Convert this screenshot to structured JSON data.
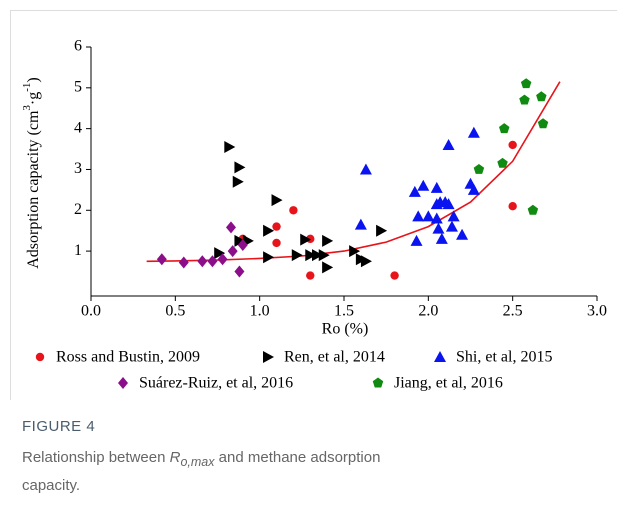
{
  "chart_data": {
    "type": "scatter",
    "xlabel": "Ro (%)",
    "ylabel": {
      "main": "Adsorption capacity (cm",
      "sup1": "3",
      "mid": "·g",
      "sup2": "-1",
      "end": ")"
    },
    "xlim": [
      0,
      3.0
    ],
    "ylim": [
      -0.1,
      6
    ],
    "xticks": [
      {
        "value": 0,
        "label": "0.0"
      },
      0.5,
      {
        "value": 1,
        "label": "1.0"
      },
      1.5,
      {
        "value": 2,
        "label": "2.0"
      },
      2.5,
      {
        "value": 3,
        "label": "3.0"
      }
    ],
    "yticks": [
      1,
      2,
      3,
      4,
      5,
      6
    ],
    "series": [
      {
        "name": "Ross and Bustin, 2009",
        "color": "#e8141b",
        "marker": "circle",
        "x": [
          1.1,
          1.1,
          0.9,
          1.2,
          1.3,
          1.3,
          1.8,
          2.5,
          2.5
        ],
        "values": [
          1.6,
          1.2,
          1.3,
          2.0,
          1.3,
          0.4,
          0.4,
          3.6,
          2.1
        ]
      },
      {
        "name": "Ren, et al, 2014",
        "color": "#000000",
        "marker": "triangle-right",
        "x": [
          0.82,
          0.88,
          0.87,
          1.1,
          1.05,
          0.88,
          0.93,
          0.76,
          1.05,
          1.27,
          1.22,
          1.3,
          1.34,
          1.38,
          1.4,
          1.4,
          1.56,
          1.6,
          1.63,
          1.72
        ],
        "values": [
          3.55,
          3.05,
          2.7,
          2.25,
          1.5,
          1.25,
          1.25,
          0.95,
          0.85,
          1.28,
          0.9,
          0.9,
          0.9,
          0.9,
          1.25,
          0.6,
          1.0,
          0.8,
          0.75,
          1.5
        ]
      },
      {
        "name": "Shi, et al, 2015",
        "color": "#0a14f0",
        "marker": "triangle-up",
        "x": [
          1.63,
          1.6,
          1.92,
          1.97,
          2.05,
          1.94,
          2.0,
          2.05,
          2.07,
          2.05,
          2.1,
          2.12,
          2.12,
          2.27,
          2.25,
          2.27,
          2.15,
          2.14,
          2.06,
          2.08,
          1.93,
          2.2
        ],
        "values": [
          3.0,
          1.65,
          2.45,
          2.6,
          2.55,
          1.85,
          1.85,
          1.8,
          2.2,
          2.15,
          2.2,
          2.15,
          3.6,
          3.9,
          2.65,
          2.5,
          1.85,
          1.6,
          1.55,
          1.3,
          1.25,
          1.4
        ]
      },
      {
        "name": "Suárez-Ruiz, et al, 2016",
        "color": "#8b0f8b",
        "marker": "diamond",
        "x": [
          0.42,
          0.55,
          0.66,
          0.72,
          0.78,
          0.83,
          0.84,
          0.88,
          0.9
        ],
        "values": [
          0.8,
          0.72,
          0.75,
          0.75,
          0.8,
          1.58,
          1.0,
          0.5,
          1.15
        ]
      },
      {
        "name": "Jiang, et al, 2016",
        "color": "#118a11",
        "marker": "pentagon",
        "x": [
          2.58,
          2.57,
          2.67,
          2.68,
          2.45,
          2.3,
          2.44,
          2.62
        ],
        "values": [
          5.1,
          4.7,
          4.78,
          4.12,
          4.0,
          3.0,
          3.15,
          2.0
        ]
      }
    ],
    "fit": {
      "color": "#e8141b",
      "x": [
        0.33,
        0.5,
        0.75,
        1.0,
        1.25,
        1.5,
        1.75,
        2.0,
        2.25,
        2.5,
        2.78
      ],
      "values": [
        0.75,
        0.76,
        0.78,
        0.82,
        0.88,
        1.0,
        1.22,
        1.6,
        2.2,
        3.2,
        5.15
      ]
    }
  },
  "caption": {
    "label": "FIGURE 4",
    "pre": "Relationship between ",
    "sym": "R",
    "sub": "o,max",
    "post": " and methane adsorption capacity."
  }
}
